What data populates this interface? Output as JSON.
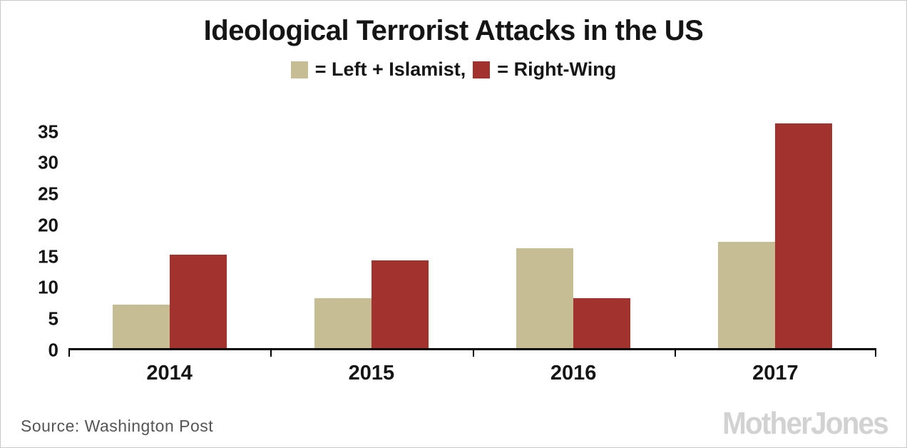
{
  "title": "Ideological Terrorist Attacks in the US",
  "legend": {
    "left_label": "= Left + Islamist,",
    "right_label": "= Right-Wing"
  },
  "colors": {
    "left_islamist": "#c7bd94",
    "right_wing": "#a2322e",
    "axis": "#000000",
    "text": "#151515",
    "source_text": "#555555",
    "logo": "#d2d2d2"
  },
  "source": "Source: Washington Post",
  "logo_text": "MotherJones",
  "chart_data": {
    "type": "bar",
    "title": "Ideological Terrorist Attacks in the US",
    "categories": [
      "2014",
      "2015",
      "2016",
      "2017"
    ],
    "series": [
      {
        "name": "Left + Islamist",
        "color": "#c7bd94",
        "values": [
          7,
          8,
          16,
          17
        ]
      },
      {
        "name": "Right-Wing",
        "color": "#a2322e",
        "values": [
          15,
          14,
          8,
          36
        ]
      }
    ],
    "xlabel": "",
    "ylabel": "",
    "yticks": [
      0,
      5,
      10,
      15,
      20,
      25,
      30,
      35
    ],
    "ylim": [
      0,
      37
    ],
    "grid": false,
    "legend_position": "top"
  }
}
